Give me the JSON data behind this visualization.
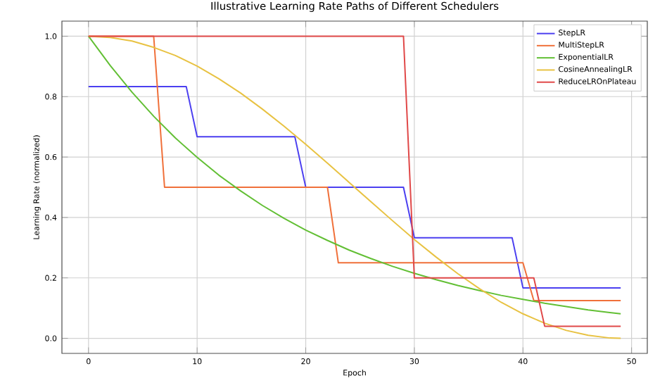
{
  "chart_data": {
    "type": "line",
    "title": "Illustrative Learning Rate Paths of Different Schedulers",
    "xlabel": "Epoch",
    "ylabel": "Learning Rate (normalized)",
    "xlim": [
      -2.45,
      51.45
    ],
    "ylim": [
      -0.05,
      1.05
    ],
    "xticks": [
      0,
      10,
      20,
      30,
      40,
      50
    ],
    "yticks": [
      {
        "value": 0,
        "label": "0.0"
      },
      {
        "value": 0.2,
        "label": "0.2"
      },
      {
        "value": 0.4,
        "label": "0.4"
      },
      {
        "value": 0.6,
        "label": "0.6"
      },
      {
        "value": 0.8,
        "label": "0.8"
      },
      {
        "value": 1.0,
        "label": "1.0"
      }
    ],
    "grid": true,
    "legend": "top right",
    "line_style": "solid",
    "marker": "none",
    "series": [
      {
        "name": "StepLR",
        "color": "#4b3ff0",
        "x": [
          0,
          9,
          10,
          19,
          20,
          29,
          30,
          39,
          40,
          49
        ],
        "values": [
          0.833,
          0.833,
          0.667,
          0.667,
          0.5,
          0.5,
          0.333,
          0.333,
          0.167,
          0.167
        ]
      },
      {
        "name": "MultiStepLR",
        "color": "#f0703a",
        "x": [
          0,
          6,
          7,
          22,
          23,
          40,
          41,
          49
        ],
        "values": [
          1.0,
          1.0,
          0.5,
          0.5,
          0.25,
          0.25,
          0.125,
          0.125
        ]
      },
      {
        "name": "ExponentialLR",
        "color": "#62bf34",
        "x": [
          0,
          2,
          4,
          6,
          8,
          10,
          12,
          14,
          16,
          18,
          20,
          22,
          24,
          26,
          28,
          30,
          32,
          34,
          36,
          38,
          40,
          42,
          44,
          46,
          48,
          49
        ],
        "values": [
          1.0,
          0.903,
          0.815,
          0.735,
          0.663,
          0.599,
          0.54,
          0.488,
          0.44,
          0.397,
          0.358,
          0.324,
          0.292,
          0.264,
          0.238,
          0.215,
          0.194,
          0.175,
          0.158,
          0.142,
          0.129,
          0.116,
          0.105,
          0.094,
          0.085,
          0.081
        ]
      },
      {
        "name": "CosineAnnealingLR",
        "color": "#e8c242",
        "x": [
          0,
          2,
          4,
          6,
          8,
          10,
          12,
          14,
          16,
          18,
          20,
          22,
          24,
          26,
          28,
          30,
          32,
          34,
          36,
          38,
          40,
          42,
          44,
          46,
          48,
          49
        ],
        "values": [
          1.0,
          0.996,
          0.984,
          0.963,
          0.936,
          0.901,
          0.859,
          0.812,
          0.759,
          0.702,
          0.642,
          0.58,
          0.516,
          0.452,
          0.389,
          0.327,
          0.269,
          0.214,
          0.164,
          0.119,
          0.081,
          0.05,
          0.026,
          0.01,
          0.001,
          0.0
        ]
      },
      {
        "name": "ReduceLROnPlateau",
        "color": "#e04848",
        "x": [
          0,
          29,
          30,
          41,
          42,
          49
        ],
        "values": [
          1.0,
          1.0,
          0.2,
          0.2,
          0.04,
          0.04
        ]
      }
    ]
  }
}
